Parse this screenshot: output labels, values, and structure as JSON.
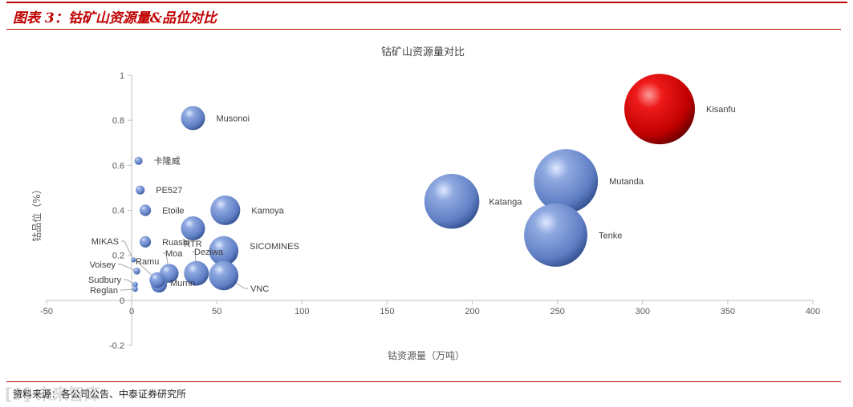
{
  "header": {
    "title": "图表 3：钴矿山资源量&品位对比"
  },
  "footer": {
    "source": "资料来源：各公司公告、中泰证券研究所",
    "watermark": "[9] 未来智库"
  },
  "chart_data": {
    "type": "bubble",
    "title": "钴矿山资源量对比",
    "xlabel": "钴资源量（万吨）",
    "ylabel": "钴品位（%）",
    "xlim": [
      -50,
      400
    ],
    "ylim": [
      -0.2,
      1
    ],
    "xticks": [
      "-50",
      "0",
      "50",
      "100",
      "150",
      "200",
      "250",
      "300",
      "350",
      "400"
    ],
    "yticks": [
      "-0.2",
      "0",
      "0.2",
      "0.4",
      "0.6",
      "0.8",
      "1"
    ],
    "colors": {
      "default": "#6f8fd0",
      "highlight": "#d00000"
    },
    "points": [
      {
        "name": "Kisanfu",
        "x": 310,
        "y": 0.85,
        "size": 310,
        "highlight": true
      },
      {
        "name": "Mutanda",
        "x": 255,
        "y": 0.53,
        "size": 255
      },
      {
        "name": "Tenke",
        "x": 249,
        "y": 0.29,
        "size": 249
      },
      {
        "name": "Katanga",
        "x": 188,
        "y": 0.44,
        "size": 188
      },
      {
        "name": "Musonoi",
        "x": 36,
        "y": 0.81,
        "size": 36
      },
      {
        "name": "卡隆威",
        "x": 4,
        "y": 0.62,
        "size": 4
      },
      {
        "name": "PE527",
        "x": 5,
        "y": 0.49,
        "size": 5
      },
      {
        "name": "Etoile",
        "x": 8,
        "y": 0.4,
        "size": 8
      },
      {
        "name": "Kamoya",
        "x": 55,
        "y": 0.4,
        "size": 55
      },
      {
        "name": "RTR",
        "x": 36,
        "y": 0.32,
        "size": 36
      },
      {
        "name": "Ruashi",
        "x": 8,
        "y": 0.26,
        "size": 8
      },
      {
        "name": "SICOMINES",
        "x": 54,
        "y": 0.22,
        "size": 54
      },
      {
        "name": "MIKAS",
        "x": 1,
        "y": 0.18,
        "size": 1
      },
      {
        "name": "Deziwa",
        "x": 38,
        "y": 0.12,
        "size": 38
      },
      {
        "name": "Moa",
        "x": 22,
        "y": 0.12,
        "size": 22
      },
      {
        "name": "Voisey",
        "x": 3,
        "y": 0.13,
        "size": 3
      },
      {
        "name": "Ramu",
        "x": 15,
        "y": 0.09,
        "size": 15
      },
      {
        "name": "VNC",
        "x": 54,
        "y": 0.11,
        "size": 54
      },
      {
        "name": "Murrin",
        "x": 16,
        "y": 0.07,
        "size": 16
      },
      {
        "name": "Sudbury",
        "x": 2,
        "y": 0.07,
        "size": 2
      },
      {
        "name": "Reglan",
        "x": 2,
        "y": 0.05,
        "size": 2
      }
    ]
  }
}
